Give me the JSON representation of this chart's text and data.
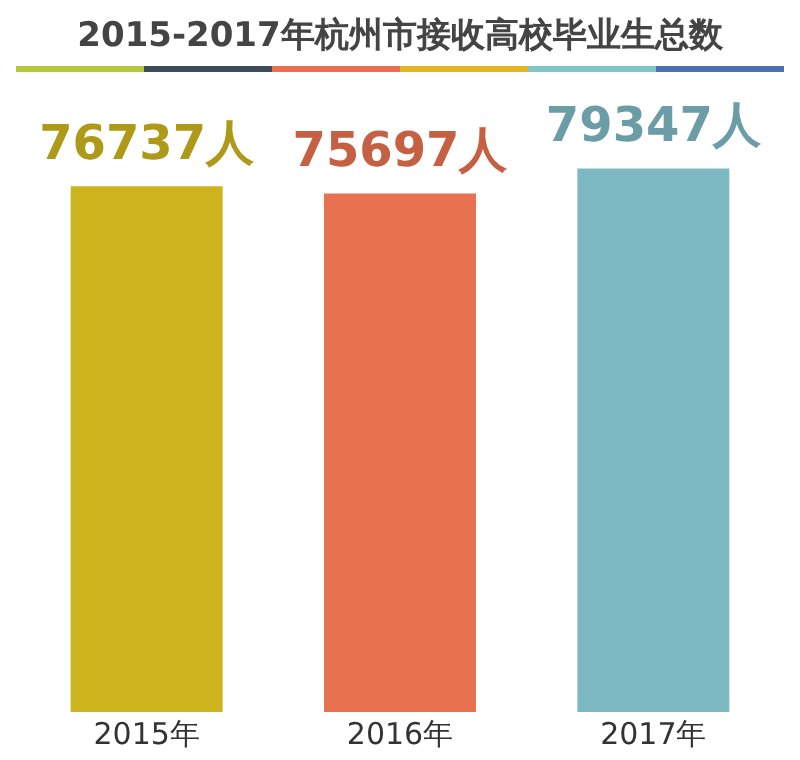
{
  "chart_data": {
    "type": "bar",
    "title": "2015-2017年杭州市接收高校毕业生总数",
    "categories": [
      "2015年",
      "2016年",
      "2017年"
    ],
    "values": [
      76737,
      75697,
      79347
    ],
    "value_labels": [
      "76737人",
      "75697人",
      "79347人"
    ],
    "colors": [
      "#cdb41c",
      "#e8714f",
      "#7db9c2"
    ],
    "tick_labels": "x",
    "grid": false,
    "legend": false
  }
}
